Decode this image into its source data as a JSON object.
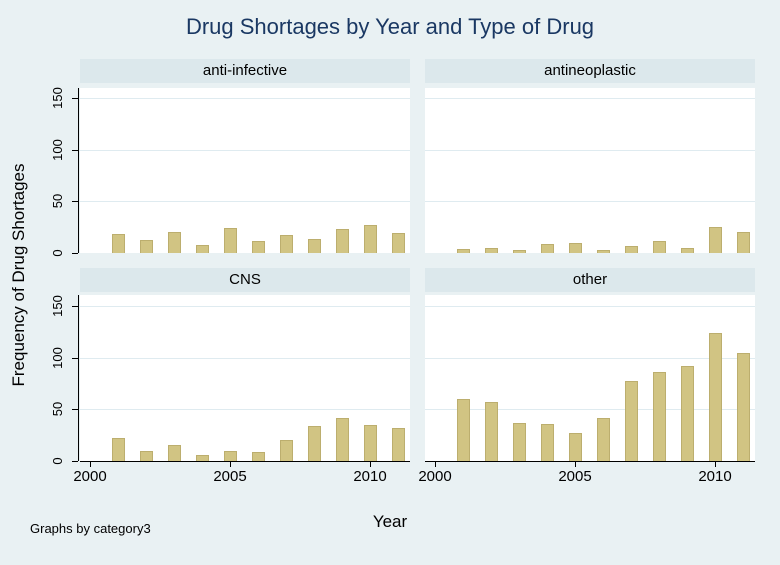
{
  "title": "Drug Shortages by Year and Type of Drug",
  "ylabel": "Frequency of Drug Shortages",
  "xlabel": "Year",
  "note": "Graphs by category3",
  "colors": {
    "background": "#e9f1f3",
    "panel_header": "#dce8ec",
    "plot_background": "#ffffff",
    "gridline": "#dfebf0",
    "bar_fill": "#d1c483",
    "bar_border": "#bcae6e",
    "title_color": "#1a3863",
    "axis_color": "#000000"
  },
  "chart_data": {
    "type": "bar",
    "title": "Drug Shortages by Year and Type of Drug",
    "xlabel": "Year",
    "ylabel": "Frequency of Drug Shortages",
    "note": "Graphs by category3",
    "x": [
      2001,
      2002,
      2003,
      2004,
      2005,
      2006,
      2007,
      2008,
      2009,
      2010,
      2011
    ],
    "x_ticks": [
      2000,
      2005,
      2010
    ],
    "y_ticks": [
      0,
      50,
      100,
      150
    ],
    "ylim": [
      0,
      158
    ],
    "xlim": [
      1999.6,
      2011.8
    ],
    "grid": true,
    "legend": "none",
    "layout": "2x2 small multiples, shared axes",
    "panels": [
      {
        "label": "anti-infective",
        "values": [
          18,
          13,
          20,
          8,
          24,
          12,
          17,
          14,
          23,
          27,
          19
        ]
      },
      {
        "label": "antineoplastic",
        "values": [
          4,
          5,
          3,
          9,
          10,
          3,
          7,
          12,
          5,
          25,
          20
        ]
      },
      {
        "label": "CNS",
        "values": [
          22,
          10,
          15,
          6,
          10,
          9,
          20,
          34,
          42,
          35,
          32
        ]
      },
      {
        "label": "other",
        "values": [
          60,
          57,
          37,
          36,
          27,
          42,
          77,
          86,
          92,
          124,
          104
        ]
      }
    ]
  }
}
